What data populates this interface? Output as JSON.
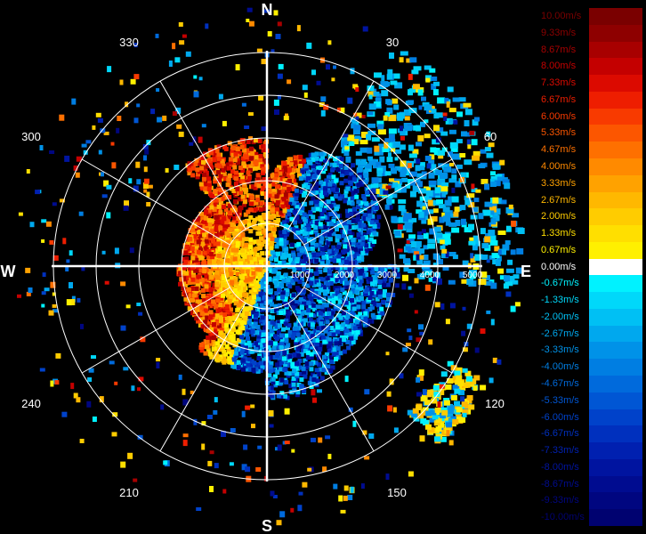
{
  "cardinals": {
    "n": "N",
    "e": "E",
    "s": "S",
    "w": "W"
  },
  "bearings": [
    "30",
    "60",
    "120",
    "150",
    "210",
    "240",
    "300",
    "330"
  ],
  "range_labels": [
    "1000",
    "2000",
    "3000",
    "4000",
    "5000"
  ],
  "legend": [
    {
      "label": "10.00m/s",
      "color": "#7a0000"
    },
    {
      "label": "9.33m/s",
      "color": "#8e0000"
    },
    {
      "label": "8.67m/s",
      "color": "#a80000"
    },
    {
      "label": "8.00m/s",
      "color": "#c40000"
    },
    {
      "label": "7.33m/s",
      "color": "#dc0a00"
    },
    {
      "label": "6.67m/s",
      "color": "#ee1e00"
    },
    {
      "label": "6.00m/s",
      "color": "#f83a00"
    },
    {
      "label": "5.33m/s",
      "color": "#fc5600"
    },
    {
      "label": "4.67m/s",
      "color": "#fe7000"
    },
    {
      "label": "4.00m/s",
      "color": "#ff8a00"
    },
    {
      "label": "3.33m/s",
      "color": "#ffa200"
    },
    {
      "label": "2.67m/s",
      "color": "#ffb800"
    },
    {
      "label": "2.00m/s",
      "color": "#ffcc00"
    },
    {
      "label": "1.33m/s",
      "color": "#ffdf00"
    },
    {
      "label": "0.67m/s",
      "color": "#fff000"
    },
    {
      "label": "0.00m/s",
      "color": "#ffffff"
    },
    {
      "label": "-0.67m/s",
      "color": "#00f2ff"
    },
    {
      "label": "-1.33m/s",
      "color": "#00d8fa"
    },
    {
      "label": "-2.00m/s",
      "color": "#00c0f4"
    },
    {
      "label": "-2.67m/s",
      "color": "#00a8ee"
    },
    {
      "label": "-3.33m/s",
      "color": "#0092e8"
    },
    {
      "label": "-4.00m/s",
      "color": "#007ee2"
    },
    {
      "label": "-4.67m/s",
      "color": "#006adc"
    },
    {
      "label": "-5.33m/s",
      "color": "#0056d4"
    },
    {
      "label": "-6.00m/s",
      "color": "#0042ca"
    },
    {
      "label": "-6.67m/s",
      "color": "#0030be"
    },
    {
      "label": "-7.33m/s",
      "color": "#0020b0"
    },
    {
      "label": "-8.00m/s",
      "color": "#0014a0"
    },
    {
      "label": "-8.67m/s",
      "color": "#000c90"
    },
    {
      "label": "-9.33m/s",
      "color": "#000680"
    },
    {
      "label": "-10.00m/s",
      "color": "#000270"
    }
  ]
}
